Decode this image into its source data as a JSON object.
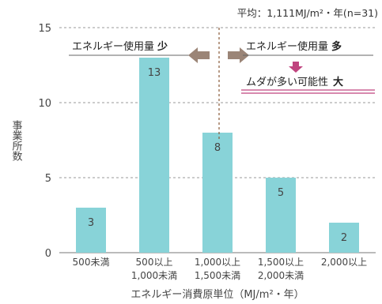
{
  "chart_data": {
    "type": "bar",
    "note": "平均：1,111MJ/m²・年(n=31)",
    "categories": [
      [
        "500未満"
      ],
      [
        "500以上",
        "1,000未満"
      ],
      [
        "1,000以上",
        "1,500未満"
      ],
      [
        "1,500以上",
        "2,000未満"
      ],
      [
        "2,000以上"
      ]
    ],
    "values": [
      3,
      13,
      8,
      5,
      2
    ],
    "xlabel": "エネルギー消費原単位（MJ/m²・年）",
    "ylabel": "事業所数",
    "ylim": [
      0,
      15
    ],
    "yticks": [
      0,
      5,
      10,
      15
    ],
    "grid": true,
    "bar_color": "#88d3d8",
    "annotations": {
      "left_label": "エネルギー使用量",
      "left_emph": "少",
      "right_label": "エネルギー使用量",
      "right_emph": "多",
      "waste_label": "ムダが多い可能性",
      "waste_emph": "大",
      "arrow_color": "#9b8577",
      "down_arrow_color": "#c0447f",
      "underline_color": "#c0447f"
    }
  }
}
